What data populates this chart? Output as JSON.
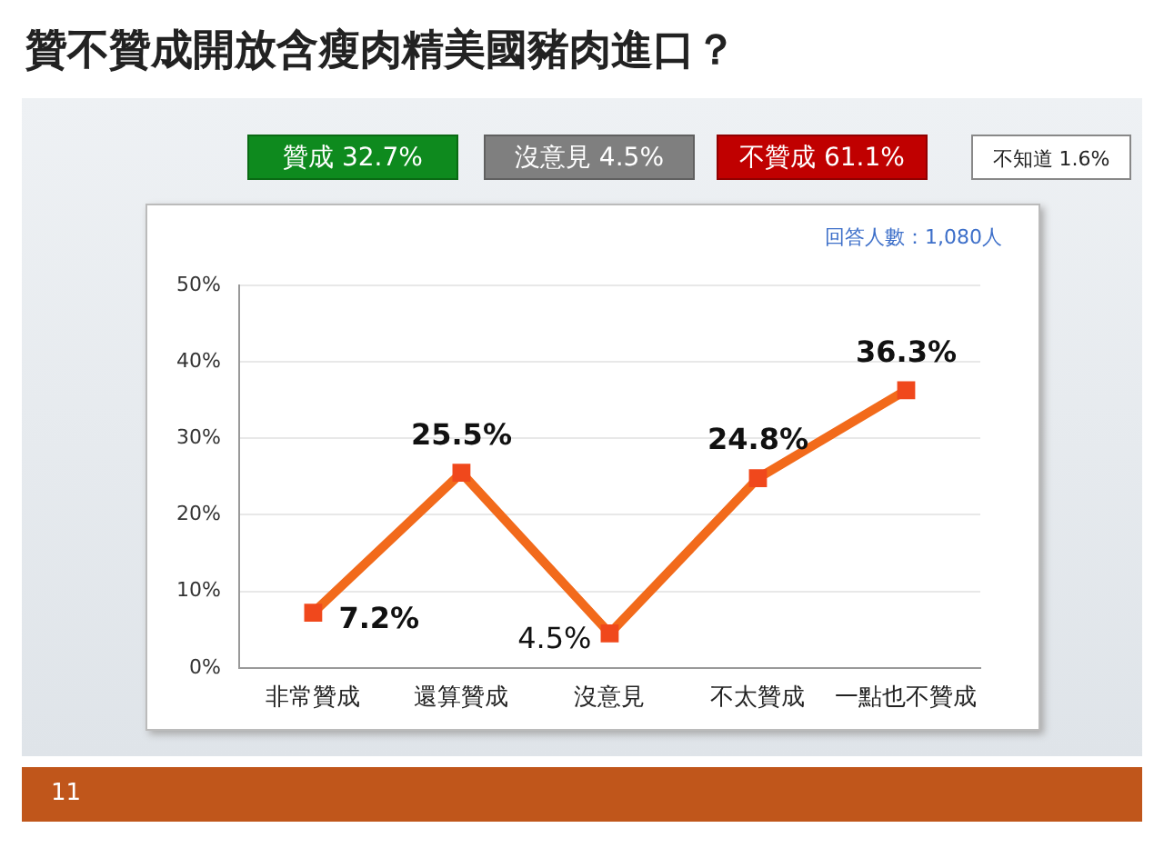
{
  "chart_data": {
    "type": "line",
    "title": "贊不贊成開放含瘦肉精美國豬肉進口？",
    "categories": [
      "非常贊成",
      "還算贊成",
      "沒意見",
      "不太贊成",
      "一點也不贊成"
    ],
    "series": [
      {
        "color": "#f26a1b",
        "values": [
          7.2,
          25.5,
          4.5,
          24.8,
          36.3
        ],
        "value_labels": [
          "7.2%",
          "25.5%",
          "4.5%",
          "24.8%",
          "36.3%"
        ]
      }
    ],
    "ylim": [
      0,
      50
    ],
    "yticks": [
      {
        "value": 0,
        "label": "0%"
      },
      {
        "value": 10,
        "label": "10%"
      },
      {
        "value": 20,
        "label": "20%"
      },
      {
        "value": 30,
        "label": "30%"
      },
      {
        "value": 40,
        "label": "40%"
      },
      {
        "value": 50,
        "label": "50%"
      }
    ],
    "grid": "y",
    "marker": "square",
    "line_style": "solid",
    "legend": false,
    "annotations": [
      "贊成 32.7%",
      "沒意見 4.5%",
      "不贊成 61.1%",
      "不知道 1.6%",
      "回答人數：1,080人",
      "11"
    ]
  }
}
